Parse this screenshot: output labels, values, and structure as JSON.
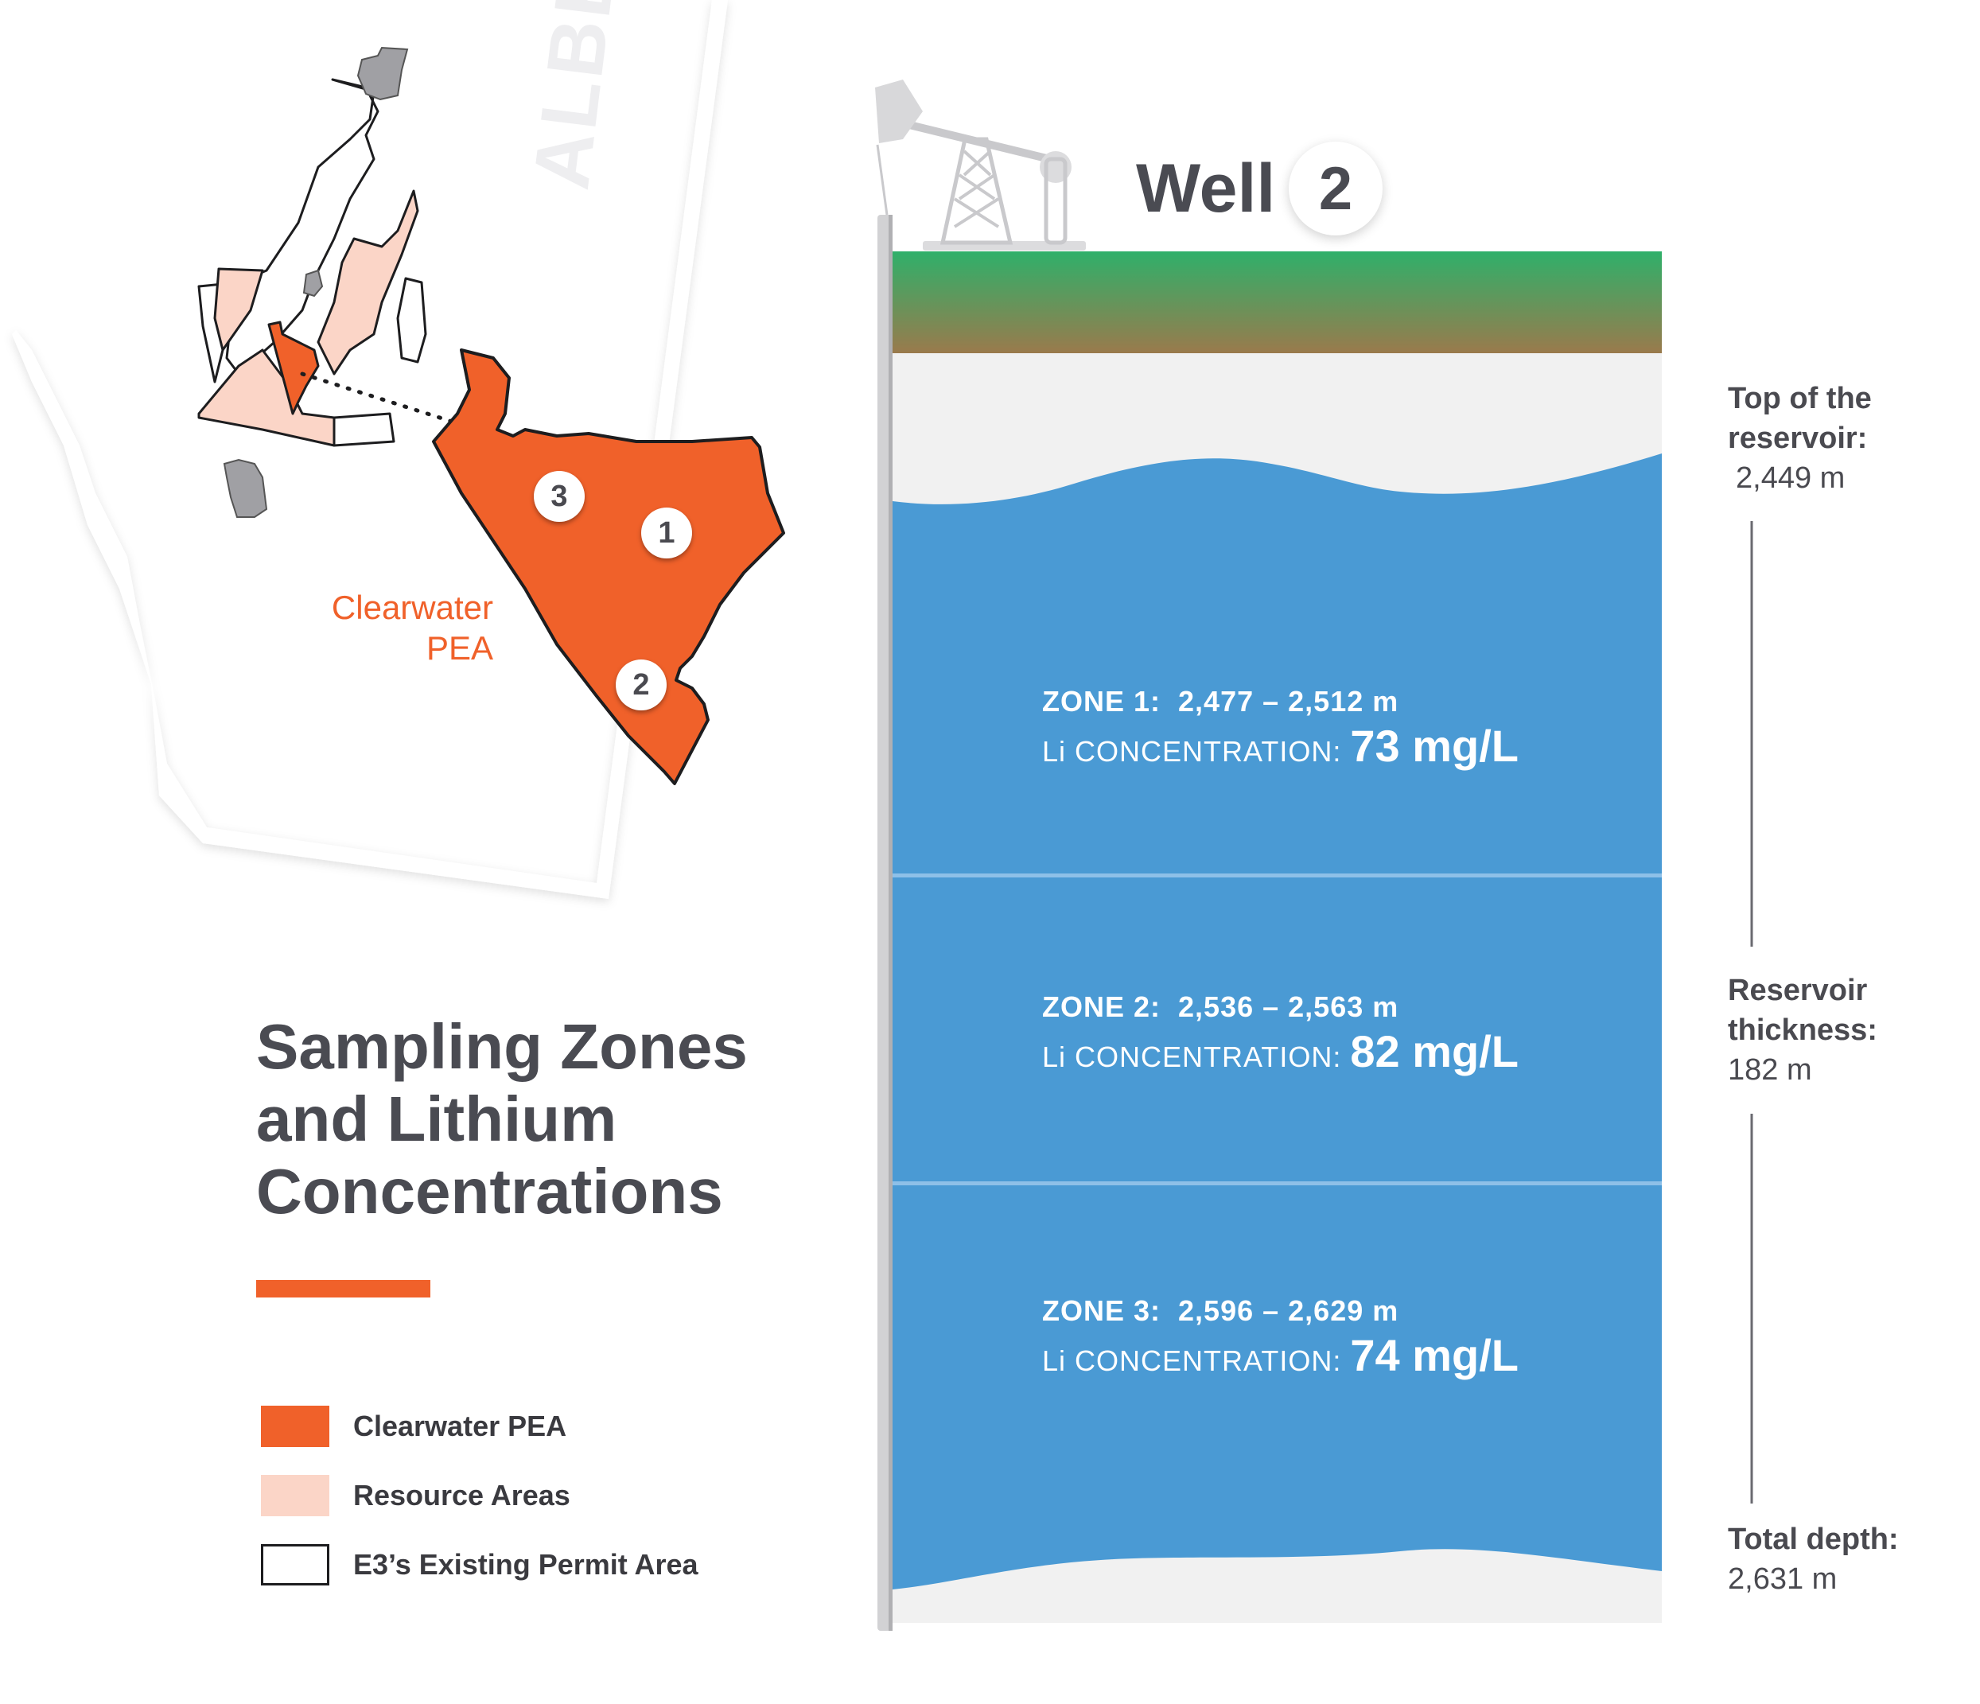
{
  "title": {
    "line1": "Sampling Zones",
    "line2": "and Lithium",
    "line3": "Concentrations"
  },
  "map": {
    "province_label": "ALBERTA",
    "pea_label_line1": "Clearwater",
    "pea_label_line2": "PEA",
    "markers": [
      "3",
      "1",
      "2"
    ]
  },
  "legend": [
    {
      "label": "Clearwater PEA",
      "color": "#f0612a"
    },
    {
      "label": "Resource Areas",
      "color": "#fbd5c7"
    },
    {
      "label": "E3’s Existing Permit Area",
      "color": "#ffffff"
    }
  ],
  "well": {
    "label": "Well",
    "number": "2"
  },
  "zones": [
    {
      "label": "ZONE 1:",
      "range": "2,477 – 2,512 m",
      "conc_label": "Li CONCENTRATION:",
      "conc_value": "73 mg/L"
    },
    {
      "label": "ZONE 2:",
      "range": "2,536 – 2,563 m",
      "conc_label": "Li CONCENTRATION:",
      "conc_value": "82 mg/L"
    },
    {
      "label": "ZONE 3:",
      "range": "2,596 – 2,629 m",
      "conc_label": "Li CONCENTRATION:",
      "conc_value": "74 mg/L"
    }
  ],
  "annotations": {
    "top": {
      "line1": "Top of the",
      "line2": "reservoir:",
      "value": "2,449 m"
    },
    "thickness": {
      "line1": "Reservoir",
      "line2": "thickness:",
      "value": "182 m"
    },
    "total": {
      "line1": "Total depth:",
      "value": "2,631 m"
    }
  },
  "colors": {
    "orange": "#f0612a",
    "resource": "#fbd5c7",
    "water": "#4a9ad4",
    "grass": "#2fb06a",
    "soil": "#9a7a4c",
    "text": "#4a4b52"
  }
}
